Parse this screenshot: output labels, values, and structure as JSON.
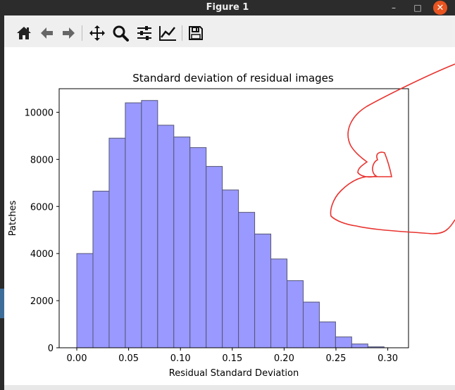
{
  "window": {
    "title": "Figure 1",
    "minimize_glyph": "–",
    "maximize_glyph": "□",
    "close_glyph": "✕"
  },
  "toolbar": {
    "buttons": [
      {
        "name": "home-icon"
      },
      {
        "name": "back-arrow-icon"
      },
      {
        "name": "forward-arrow-icon"
      },
      {
        "name": "pan-icon"
      },
      {
        "name": "zoom-icon"
      },
      {
        "name": "subplots-config-icon"
      },
      {
        "name": "edit-axes-icon"
      },
      {
        "name": "save-icon"
      }
    ]
  },
  "chart_data": {
    "type": "bar",
    "title": "Standard deviation of residual images",
    "xlabel": "Residual Standard Deviation",
    "ylabel": "Patches",
    "xlim": [
      -0.017,
      0.32
    ],
    "ylim": [
      0,
      11000
    ],
    "xticks": [
      "0.00",
      "0.05",
      "0.10",
      "0.15",
      "0.20",
      "0.25",
      "0.30"
    ],
    "yticks": [
      "0",
      "2000",
      "4000",
      "6000",
      "8000",
      "10000"
    ],
    "bin_edges": [
      0.0,
      0.0156,
      0.0312,
      0.0468,
      0.0624,
      0.078,
      0.0936,
      0.1092,
      0.1248,
      0.1404,
      0.156,
      0.1716,
      0.1872,
      0.2028,
      0.2184,
      0.234,
      0.2496,
      0.2652,
      0.2808,
      0.2964
    ],
    "values": [
      4000,
      6650,
      8900,
      10400,
      10500,
      9450,
      8950,
      8500,
      7700,
      6700,
      5750,
      4830,
      3770,
      2850,
      1940,
      1100,
      460,
      160,
      40
    ],
    "bar_color": "#9999ff",
    "edge_color": "#555577",
    "grid": false
  },
  "annotation": {
    "color": "#e8332f"
  }
}
